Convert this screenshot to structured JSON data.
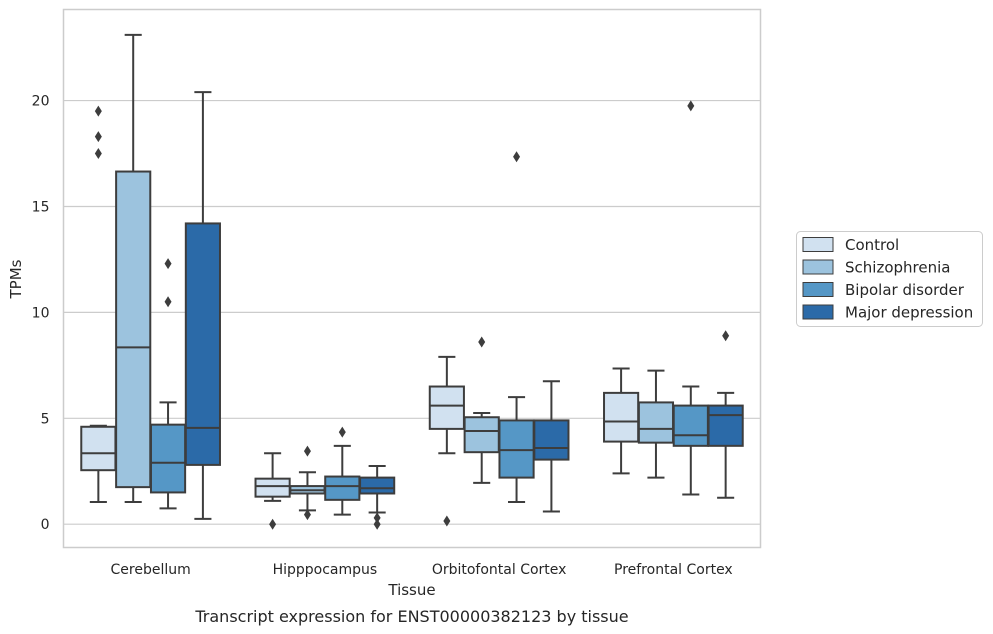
{
  "caption": "Transcript expression for ENST00000382123 by tissue",
  "chart_data": {
    "type": "box",
    "xlabel": "Tissue",
    "ylabel": "TPMs",
    "ylim": [
      -1.1,
      24.3
    ],
    "yticks": [
      0,
      5,
      10,
      15,
      20
    ],
    "grid": "horizontal",
    "legend_position": "right",
    "categories": [
      "Cerebellum",
      "Hipppocampus",
      "Orbitofontal Cortex",
      "Prefrontal Cortex"
    ],
    "series": [
      {
        "name": "Control",
        "color": "#d1e1f0",
        "boxes": [
          {
            "q1": 2.55,
            "median": 3.35,
            "q3": 4.6,
            "whisker_low": 1.05,
            "whisker_high": 4.65,
            "outliers": [
              17.5,
              18.3,
              19.5
            ]
          },
          {
            "q1": 1.3,
            "median": 1.8,
            "q3": 2.15,
            "whisker_low": 1.1,
            "whisker_high": 3.35,
            "outliers": [
              0.0
            ]
          },
          {
            "q1": 4.5,
            "median": 5.6,
            "q3": 6.5,
            "whisker_low": 3.35,
            "whisker_high": 7.9,
            "outliers": [
              0.15
            ]
          },
          {
            "q1": 3.9,
            "median": 4.85,
            "q3": 6.2,
            "whisker_low": 2.4,
            "whisker_high": 7.35,
            "outliers": []
          }
        ]
      },
      {
        "name": "Schizophrenia",
        "color": "#9cc3de",
        "boxes": [
          {
            "q1": 1.75,
            "median": 8.35,
            "q3": 16.65,
            "whisker_low": 1.05,
            "whisker_high": 23.1,
            "outliers": []
          },
          {
            "q1": 1.45,
            "median": 1.6,
            "q3": 1.8,
            "whisker_low": 0.65,
            "whisker_high": 2.45,
            "outliers": [
              0.45,
              3.45
            ]
          },
          {
            "q1": 3.4,
            "median": 4.4,
            "q3": 5.05,
            "whisker_low": 1.95,
            "whisker_high": 5.25,
            "outliers": [
              8.6
            ]
          },
          {
            "q1": 3.85,
            "median": 4.5,
            "q3": 5.75,
            "whisker_low": 2.2,
            "whisker_high": 7.25,
            "outliers": []
          }
        ]
      },
      {
        "name": "Bipolar disorder",
        "color": "#5597c6",
        "boxes": [
          {
            "q1": 1.5,
            "median": 2.9,
            "q3": 4.7,
            "whisker_low": 0.75,
            "whisker_high": 5.75,
            "outliers": [
              10.5,
              12.3
            ]
          },
          {
            "q1": 1.15,
            "median": 1.8,
            "q3": 2.25,
            "whisker_low": 0.45,
            "whisker_high": 3.7,
            "outliers": [
              4.35
            ]
          },
          {
            "q1": 2.2,
            "median": 3.5,
            "q3": 4.9,
            "whisker_low": 1.05,
            "whisker_high": 6.0,
            "outliers": [
              17.35
            ]
          },
          {
            "q1": 3.7,
            "median": 4.2,
            "q3": 5.6,
            "whisker_low": 1.4,
            "whisker_high": 6.5,
            "outliers": [
              19.75
            ]
          }
        ]
      },
      {
        "name": "Major depression",
        "color": "#2b6aa8",
        "boxes": [
          {
            "q1": 2.8,
            "median": 4.55,
            "q3": 14.2,
            "whisker_low": 0.25,
            "whisker_high": 20.4,
            "outliers": []
          },
          {
            "q1": 1.45,
            "median": 1.7,
            "q3": 2.2,
            "whisker_low": 0.55,
            "whisker_high": 2.75,
            "outliers": [
              0.0,
              0.3
            ]
          },
          {
            "q1": 3.05,
            "median": 3.6,
            "q3": 4.9,
            "whisker_low": 0.6,
            "whisker_high": 6.75,
            "outliers": []
          },
          {
            "q1": 3.7,
            "median": 5.15,
            "q3": 5.6,
            "whisker_low": 1.25,
            "whisker_high": 6.2,
            "outliers": [
              8.9
            ]
          }
        ]
      }
    ]
  }
}
